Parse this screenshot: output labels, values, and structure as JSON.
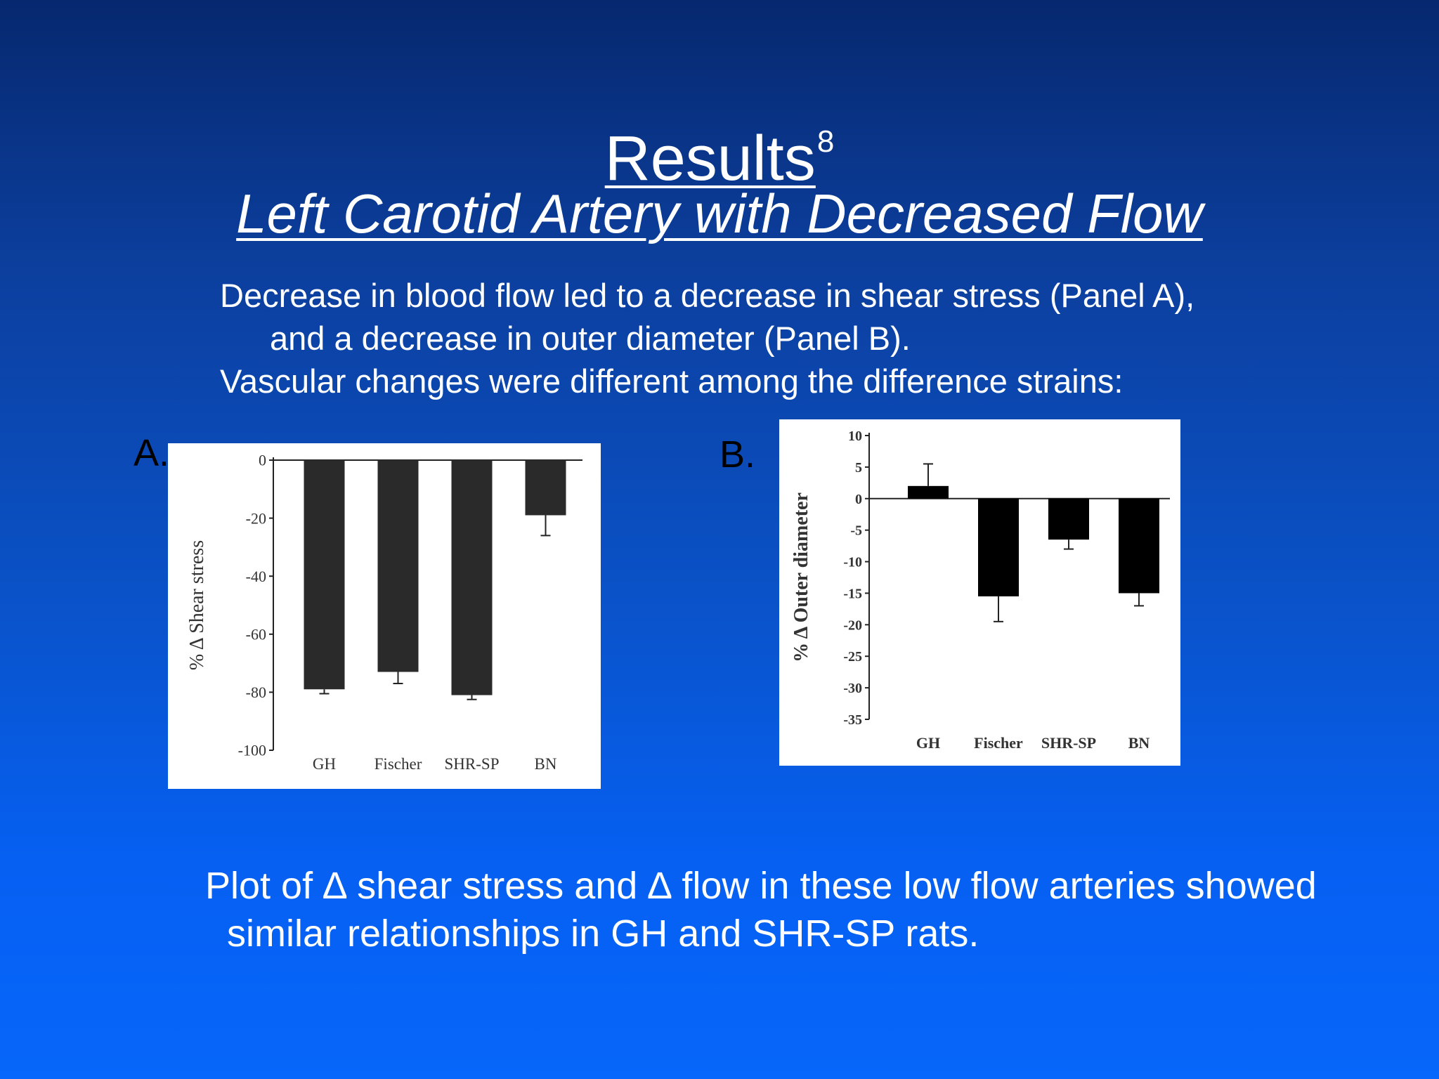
{
  "slide": {
    "title": "Results",
    "title_sup": "8",
    "subtitle": "Left Carotid Artery with Decreased Flow",
    "paragraph": [
      "Decrease in blood flow led to a decrease in shear stress (Panel A),",
      "and a decrease in outer diameter (Panel B).",
      "Vascular changes were different among the difference strains:"
    ],
    "panel_a_label": "A.",
    "panel_b_label": "B.",
    "summary": [
      "Plot of ∆ shear stress and ∆ flow in these low flow arteries showed",
      "similar relationships in GH and SHR-SP rats."
    ]
  },
  "chart_data": [
    {
      "type": "bar",
      "panel": "A",
      "title": "",
      "xlabel": "",
      "ylabel": "% Δ Shear stress",
      "categories": [
        "GH",
        "Fischer",
        "SHR-SP",
        "BN"
      ],
      "values": [
        -79,
        -73,
        -81,
        -19
      ],
      "error": [
        1.5,
        4,
        1.5,
        7
      ],
      "ylim": [
        -100,
        0
      ],
      "yticks": [
        0,
        -20,
        -40,
        -60,
        -80,
        -100
      ],
      "bar_color": "#2a2a2a",
      "grid": false
    },
    {
      "type": "bar",
      "panel": "B",
      "title": "",
      "xlabel": "",
      "ylabel": "% Δ Outer diameter",
      "categories": [
        "GH",
        "Fischer",
        "SHR-SP",
        "BN"
      ],
      "values": [
        2,
        -15.5,
        -6.5,
        -15
      ],
      "error": [
        3.5,
        4,
        1.5,
        2
      ],
      "ylim": [
        -35,
        10
      ],
      "yticks": [
        10,
        5,
        0,
        -5,
        -10,
        -15,
        -20,
        -25,
        -30,
        -35
      ],
      "bar_color": "#000000",
      "grid": false
    }
  ]
}
